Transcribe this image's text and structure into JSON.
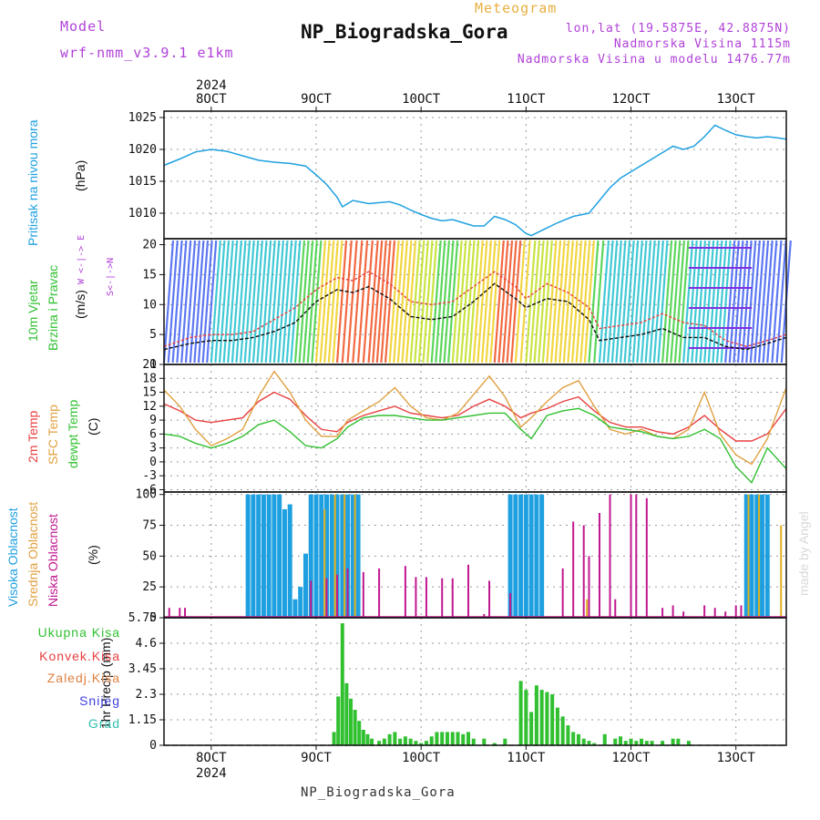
{
  "header": {
    "model_label": "Model",
    "model_name": "wrf-nmm_v3.9.1  e1km",
    "title": "NP_Biogradska_Gora",
    "subtitle": "Meteogram",
    "coords": "lon,lat (19.5875E, 42.8875N)",
    "elevation": "Nadmorska Visina 1115m",
    "model_elevation": "Nadmorska Visina u modelu 1476.77m",
    "footer_station": "NP_Biogradska_Gora",
    "credit": "made by Angel"
  },
  "x_axis": {
    "year_label": "2024",
    "date_labels": [
      "8OCT",
      "9OCT",
      "10OCT",
      "11OCT",
      "12OCT",
      "13OCT"
    ],
    "start_day": 7.55,
    "end_day": 13.48
  },
  "colors": {
    "pressure": "#1ea0e0",
    "temp_2m": "#e84040",
    "temp_sfc": "#e0a040",
    "dewpoint": "#30c030",
    "cloud_high": "#1ea0e0",
    "cloud_mid": "#e0b020",
    "cloud_low": "#c01890",
    "precip_total": "#30c030"
  },
  "chart_data": [
    {
      "type": "line",
      "id": "pressure",
      "ylabel_main": "Pritisak na nivou mora",
      "ylabel_unit": "(hPa)",
      "yticks": [
        "1010",
        "1015",
        "1020",
        "1025"
      ],
      "ylim": [
        1006,
        1026
      ],
      "x": [
        7.55,
        7.7,
        7.85,
        8.0,
        8.15,
        8.3,
        8.45,
        8.6,
        8.75,
        8.9,
        9.0,
        9.1,
        9.2,
        9.25,
        9.35,
        9.5,
        9.7,
        9.8,
        9.9,
        10.0,
        10.1,
        10.2,
        10.3,
        10.4,
        10.5,
        10.6,
        10.7,
        10.8,
        10.9,
        11.0,
        11.05,
        11.15,
        11.3,
        11.45,
        11.6,
        11.7,
        11.8,
        11.9,
        12.0,
        12.1,
        12.2,
        12.3,
        12.4,
        12.5,
        12.6,
        12.7,
        12.8,
        12.9,
        13.0,
        13.1,
        13.2,
        13.3,
        13.4,
        13.48
      ],
      "y": [
        1017.5,
        1018.5,
        1019.6,
        1020.0,
        1019.7,
        1019.0,
        1018.3,
        1018.0,
        1017.8,
        1017.4,
        1016.0,
        1014.5,
        1012.5,
        1011.0,
        1012.0,
        1011.5,
        1011.8,
        1011.3,
        1010.5,
        1009.8,
        1009.2,
        1008.8,
        1009.0,
        1008.5,
        1008.0,
        1008.0,
        1009.5,
        1009.0,
        1008.2,
        1006.8,
        1006.5,
        1007.3,
        1008.5,
        1009.5,
        1010.0,
        1012.0,
        1014.0,
        1015.5,
        1016.5,
        1017.5,
        1018.5,
        1019.5,
        1020.5,
        1020.0,
        1020.5,
        1022.0,
        1023.8,
        1023.0,
        1022.3,
        1022.0,
        1021.8,
        1022.0,
        1021.8,
        1021.6
      ],
      "series": [
        {
          "name": "",
          "color": "#1ea0e0"
        }
      ]
    },
    {
      "type": "line",
      "id": "wind",
      "ylabel_main": "10m Vjetar",
      "ylabel_sub": "Brzina i Pravac",
      "ylabel_unit": "(m/s)",
      "compass_label": "W  <-|->  E",
      "compass_label2": "S<-|->N",
      "yticks": [
        "0",
        "5",
        "10",
        "15",
        "20"
      ],
      "ylim": [
        0,
        21
      ],
      "x": [
        7.55,
        7.8,
        8.0,
        8.2,
        8.4,
        8.6,
        8.8,
        9.0,
        9.2,
        9.35,
        9.5,
        9.7,
        9.9,
        10.1,
        10.3,
        10.5,
        10.7,
        10.9,
        11.0,
        11.2,
        11.4,
        11.6,
        11.7,
        11.9,
        12.1,
        12.3,
        12.5,
        12.7,
        12.9,
        13.1,
        13.3,
        13.48
      ],
      "y_speed": [
        2.5,
        3.5,
        4.0,
        4.0,
        4.5,
        5.5,
        7.0,
        10.5,
        12.5,
        12.0,
        13.0,
        11.0,
        8.0,
        7.5,
        8.0,
        10.5,
        13.5,
        11.0,
        9.5,
        11.0,
        10.5,
        7.5,
        4.0,
        4.5,
        5.0,
        6.0,
        4.5,
        4.5,
        3.0,
        2.5,
        3.5,
        4.5
      ],
      "y_gust": [
        3.0,
        4.5,
        5.0,
        5.0,
        5.5,
        7.5,
        9.5,
        12.5,
        14.5,
        14.0,
        15.5,
        13.5,
        10.5,
        10.0,
        10.5,
        13.0,
        15.5,
        13.0,
        11.0,
        13.5,
        12.0,
        9.5,
        6.0,
        6.5,
        7.0,
        8.5,
        7.0,
        6.5,
        4.0,
        3.0,
        4.0,
        5.0
      ],
      "series": [
        {
          "name": "",
          "color": "#111111"
        },
        {
          "name": "",
          "color": "#e84040"
        }
      ]
    },
    {
      "type": "line",
      "id": "temperature",
      "ylabel_a": "2m Temp",
      "ylabel_b": "SFC Temp",
      "ylabel_c": "dewpt Temp",
      "ylabel_unit": "(C)",
      "yticks": [
        "-6",
        "-3",
        "0",
        "3",
        "6",
        "9",
        "12",
        "15",
        "18",
        "21"
      ],
      "ylim": [
        -6.5,
        21
      ],
      "x": [
        7.55,
        7.7,
        7.85,
        8.0,
        8.15,
        8.3,
        8.45,
        8.6,
        8.75,
        8.9,
        9.05,
        9.2,
        9.3,
        9.45,
        9.6,
        9.75,
        9.9,
        10.05,
        10.2,
        10.35,
        10.5,
        10.65,
        10.8,
        10.95,
        11.05,
        11.2,
        11.35,
        11.5,
        11.65,
        11.8,
        11.95,
        12.1,
        12.25,
        12.4,
        12.55,
        12.7,
        12.85,
        13.0,
        13.15,
        13.3,
        13.48
      ],
      "series": [
        {
          "name": "2m Temp",
          "color": "#e84040",
          "values": [
            12.5,
            11.0,
            9.0,
            8.5,
            9.0,
            9.5,
            13.0,
            15.0,
            13.5,
            10.0,
            7.0,
            6.5,
            8.5,
            10.0,
            11.0,
            12.0,
            10.5,
            10.0,
            9.5,
            10.0,
            12.0,
            13.5,
            12.0,
            9.5,
            10.5,
            11.5,
            13.0,
            14.0,
            11.0,
            8.5,
            7.5,
            7.5,
            6.5,
            6.0,
            7.5,
            10.0,
            7.0,
            4.5,
            4.5,
            6.0,
            11.5
          ]
        },
        {
          "name": "SFC Temp",
          "color": "#e0a040",
          "values": [
            15.5,
            12.0,
            7.0,
            3.5,
            5.0,
            7.0,
            14.0,
            19.5,
            15.0,
            9.0,
            5.5,
            5.5,
            9.0,
            11.0,
            13.0,
            16.0,
            12.0,
            9.5,
            9.0,
            10.5,
            14.5,
            18.5,
            14.0,
            7.5,
            9.5,
            13.0,
            16.0,
            17.5,
            12.0,
            7.0,
            6.0,
            7.0,
            5.5,
            5.0,
            7.0,
            15.0,
            6.0,
            1.5,
            -0.5,
            5.0,
            16.0
          ]
        },
        {
          "name": "dewpt Temp",
          "color": "#30c030",
          "values": [
            6.0,
            5.5,
            4.0,
            3.0,
            4.0,
            5.5,
            8.0,
            9.0,
            6.5,
            3.5,
            3.0,
            5.0,
            7.5,
            9.5,
            10.0,
            10.0,
            9.5,
            9.0,
            9.0,
            9.5,
            10.0,
            10.5,
            10.5,
            7.0,
            5.0,
            10.0,
            11.0,
            11.5,
            10.0,
            7.5,
            7.0,
            6.5,
            5.5,
            5.0,
            5.5,
            7.0,
            5.0,
            -1.0,
            -4.5,
            3.0,
            -1.5
          ]
        }
      ]
    },
    {
      "type": "bar",
      "id": "clouds",
      "ylabel_a": "Visoka Oblacnost",
      "ylabel_b": "Srednja Oblacnost",
      "ylabel_c": "Niska Oblacnost",
      "ylabel_unit": "(%)",
      "yticks": [
        "0",
        "25",
        "50",
        "75",
        "100"
      ],
      "ylim": [
        0,
        102
      ],
      "high_x": [
        8.35,
        8.4,
        8.45,
        8.5,
        8.55,
        8.6,
        8.65,
        8.7,
        8.75,
        8.8,
        8.85,
        8.9,
        8.95,
        9.0,
        9.05,
        9.1,
        9.15,
        9.2,
        9.25,
        9.3,
        9.35,
        9.4,
        10.85,
        10.9,
        10.95,
        11.0,
        11.05,
        11.1,
        11.15,
        13.1,
        13.15,
        13.2,
        13.25,
        13.3
      ],
      "high_values": [
        100,
        100,
        100,
        100,
        100,
        100,
        100,
        88,
        92,
        15,
        25,
        52,
        100,
        100,
        100,
        100,
        100,
        100,
        100,
        100,
        100,
        100,
        100,
        100,
        100,
        100,
        100,
        100,
        100,
        100,
        100,
        100,
        100,
        100
      ],
      "mid_x": [
        9.08,
        9.18,
        9.27,
        9.37,
        11.58,
        13.12,
        13.22,
        13.43
      ],
      "mid_values": [
        88,
        100,
        100,
        100,
        15,
        100,
        100,
        75
      ],
      "low_x": [
        7.6,
        7.7,
        7.75,
        8.95,
        9.1,
        9.2,
        9.3,
        9.45,
        9.6,
        9.85,
        9.95,
        10.05,
        10.2,
        10.3,
        10.45,
        10.6,
        10.65,
        10.85,
        11.35,
        11.45,
        11.55,
        11.6,
        11.7,
        11.8,
        11.85,
        12.0,
        12.05,
        12.15,
        12.3,
        12.4,
        12.5,
        12.7,
        12.8,
        12.9,
        13.0,
        13.05
      ],
      "low_values": [
        8,
        8,
        8,
        30,
        32,
        35,
        40,
        37,
        40,
        42,
        33,
        33,
        32,
        32,
        43,
        3,
        30,
        20,
        40,
        78,
        75,
        50,
        85,
        100,
        15,
        100,
        100,
        97,
        8,
        10,
        5,
        10,
        8,
        5,
        10,
        10
      ]
    },
    {
      "type": "bar",
      "id": "precipitation",
      "ylabel_unit": "1hr Precip (mm)",
      "legend": [
        "Ukupna Kisa",
        "Konvek.Kisa",
        "Zaledj.Kisa",
        "Snijeg",
        "Grad"
      ],
      "legend_colors": [
        "#30c030",
        "#e84040",
        "#e08040",
        "#4040e0",
        "#30c0b0"
      ],
      "yticks": [
        "0",
        "1.15",
        "2.3",
        "3.45",
        "4.6",
        "5.75"
      ],
      "ylim": [
        0,
        5.75
      ],
      "x": [
        9.17,
        9.21,
        9.25,
        9.29,
        9.33,
        9.37,
        9.41,
        9.45,
        9.49,
        9.53,
        9.6,
        9.65,
        9.7,
        9.75,
        9.8,
        9.85,
        9.9,
        9.95,
        10.0,
        10.05,
        10.1,
        10.15,
        10.2,
        10.25,
        10.3,
        10.35,
        10.4,
        10.45,
        10.5,
        10.6,
        10.7,
        10.8,
        10.95,
        11.0,
        11.05,
        11.1,
        11.15,
        11.2,
        11.25,
        11.3,
        11.35,
        11.4,
        11.45,
        11.5,
        11.55,
        11.6,
        11.65,
        11.75,
        11.85,
        11.9,
        11.95,
        12.0,
        12.05,
        12.1,
        12.15,
        12.2,
        12.3,
        12.4,
        12.45,
        12.55
      ],
      "values": [
        0.6,
        2.2,
        5.5,
        2.8,
        2.1,
        1.6,
        1.1,
        0.7,
        0.5,
        0.3,
        0.2,
        0.3,
        0.5,
        0.6,
        0.3,
        0.4,
        0.3,
        0.2,
        0.1,
        0.2,
        0.4,
        0.6,
        0.6,
        0.6,
        0.6,
        0.6,
        0.5,
        0.6,
        0.3,
        0.3,
        0.1,
        0.3,
        2.9,
        2.5,
        1.5,
        2.7,
        2.5,
        2.4,
        2.3,
        1.7,
        1.3,
        0.9,
        0.6,
        0.5,
        0.3,
        0.2,
        0.1,
        0.5,
        0.3,
        0.4,
        0.2,
        0.3,
        0.2,
        0.3,
        0.2,
        0.2,
        0.2,
        0.3,
        0.3,
        0.2
      ]
    }
  ]
}
